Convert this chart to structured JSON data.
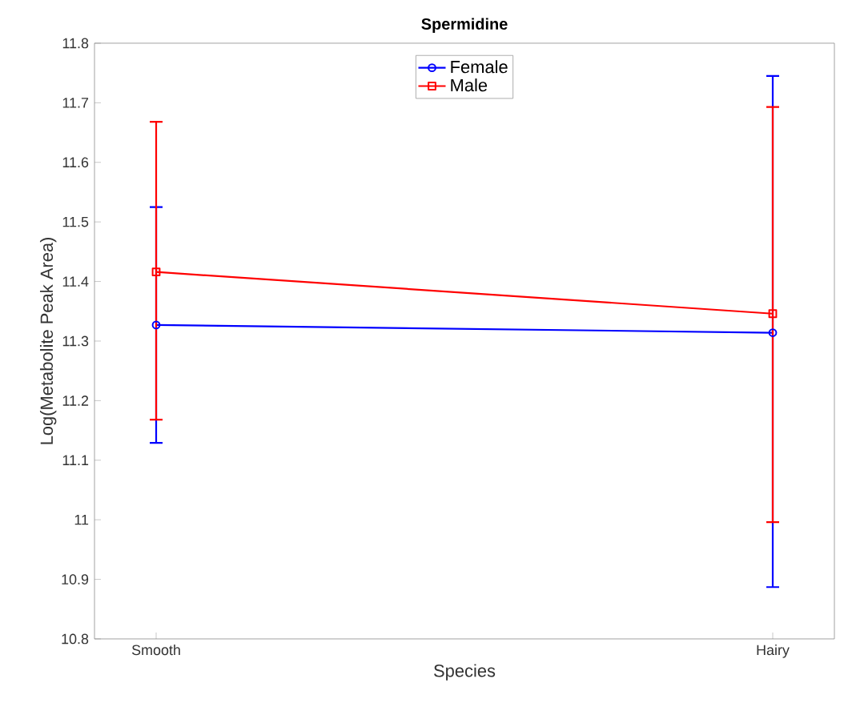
{
  "chart_data": {
    "type": "line",
    "title": "Spermidine",
    "xlabel": "Species",
    "ylabel": "Log(Metabolite Peak Area)",
    "categories": [
      "Smooth",
      "Hairy"
    ],
    "series": [
      {
        "name": "Female",
        "color": "#0000ff",
        "marker": "circle",
        "values": [
          11.327,
          11.314
        ],
        "errors": [
          [
            11.129,
            11.525
          ],
          [
            10.887,
            11.745
          ]
        ]
      },
      {
        "name": "Male",
        "color": "#ff0000",
        "marker": "square",
        "values": [
          11.416,
          11.346
        ],
        "errors": [
          [
            11.168,
            11.668
          ],
          [
            10.996,
            11.693
          ]
        ]
      }
    ],
    "ylim": [
      10.8,
      11.8
    ],
    "yticks": [
      10.8,
      10.9,
      11,
      11.1,
      11.2,
      11.3,
      11.4,
      11.5,
      11.6,
      11.7,
      11.8
    ],
    "grid": false,
    "legend": "top",
    "line_style": "solid"
  }
}
